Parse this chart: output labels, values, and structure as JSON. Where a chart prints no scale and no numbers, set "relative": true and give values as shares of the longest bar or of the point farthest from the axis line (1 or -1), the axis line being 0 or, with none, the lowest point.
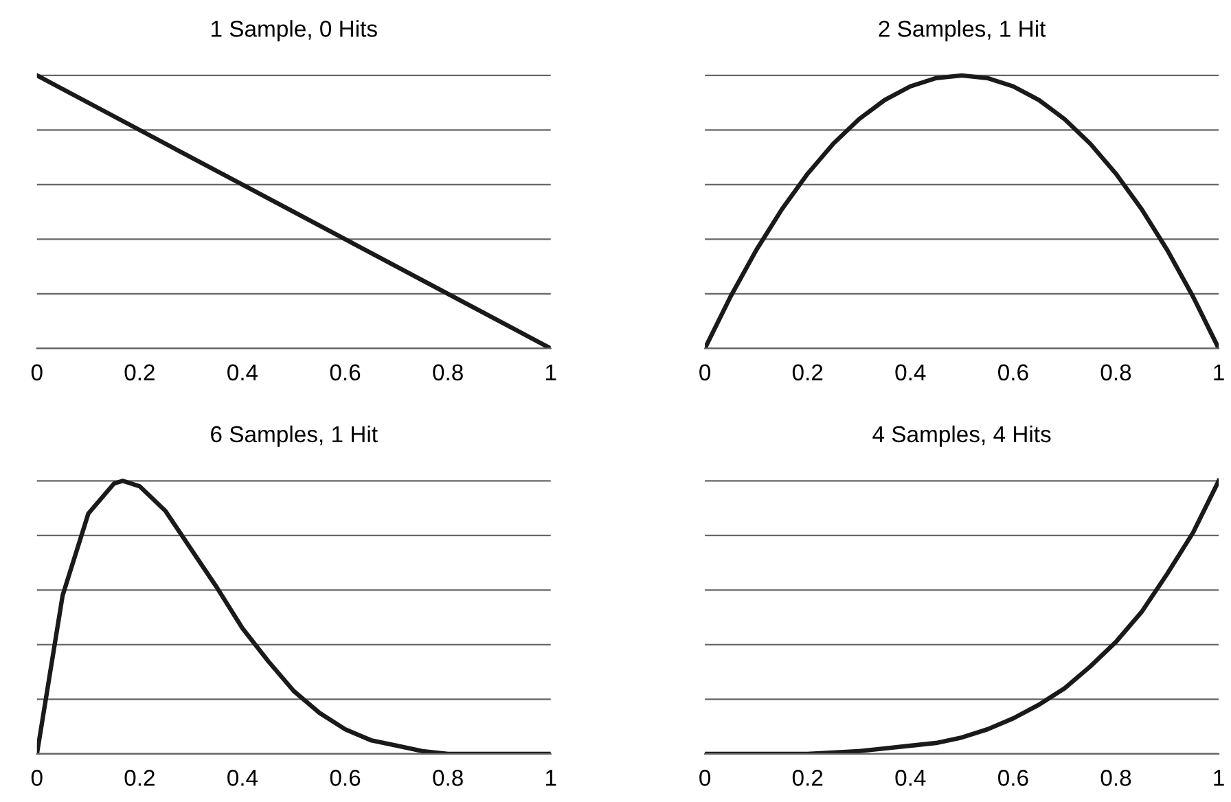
{
  "chart_data": [
    {
      "type": "line",
      "title": "1 Sample, 0 Hits",
      "relative": true,
      "grid": "y",
      "tick_labels": "x",
      "xlim": [
        0,
        1
      ],
      "xticks": [
        0,
        0.2,
        0.4,
        0.6,
        0.8,
        1
      ],
      "series": [
        {
          "color": "#1a1a1a",
          "x": [
            0,
            0.25,
            0.5,
            0.75,
            1
          ],
          "values": [
            1,
            0.75,
            0.5,
            0.25,
            0
          ]
        }
      ]
    },
    {
      "type": "line",
      "title": "2 Samples, 1 Hit",
      "relative": true,
      "grid": "y",
      "tick_labels": "x",
      "xlim": [
        0,
        1
      ],
      "xticks": [
        0,
        0.2,
        0.4,
        0.6,
        0.8,
        1
      ],
      "series": [
        {
          "color": "#1a1a1a",
          "x": [
            0,
            0.05,
            0.1,
            0.15,
            0.2,
            0.25,
            0.3,
            0.35,
            0.4,
            0.45,
            0.5,
            0.55,
            0.6,
            0.65,
            0.7,
            0.75,
            0.8,
            0.85,
            0.9,
            0.95,
            1
          ],
          "values": [
            0,
            0.19,
            0.36,
            0.51,
            0.64,
            0.75,
            0.84,
            0.91,
            0.96,
            0.99,
            1,
            0.99,
            0.96,
            0.91,
            0.84,
            0.75,
            0.64,
            0.51,
            0.36,
            0.19,
            0
          ]
        }
      ]
    },
    {
      "type": "line",
      "title": "6 Samples, 1 Hit",
      "relative": true,
      "grid": "y",
      "tick_labels": "x",
      "xlim": [
        0,
        1
      ],
      "xticks": [
        0,
        0.2,
        0.4,
        0.6,
        0.8,
        1
      ],
      "series": [
        {
          "color": "#1a1a1a",
          "x": [
            0,
            0.05,
            0.1,
            0.15,
            0.167,
            0.2,
            0.25,
            0.3,
            0.35,
            0.4,
            0.45,
            0.5,
            0.55,
            0.6,
            0.65,
            0.7,
            0.75,
            0.8,
            0.85,
            0.9,
            1
          ],
          "values": [
            0,
            0.58,
            0.88,
            0.99,
            1,
            0.98,
            0.89,
            0.75,
            0.61,
            0.46,
            0.34,
            0.23,
            0.15,
            0.09,
            0.05,
            0.03,
            0.01,
            0,
            0,
            0,
            0
          ]
        }
      ]
    },
    {
      "type": "line",
      "title": "4 Samples, 4 Hits",
      "relative": true,
      "grid": "y",
      "tick_labels": "x",
      "xlim": [
        0,
        1
      ],
      "xticks": [
        0,
        0.2,
        0.4,
        0.6,
        0.8,
        1
      ],
      "series": [
        {
          "color": "#1a1a1a",
          "x": [
            0,
            0.2,
            0.3,
            0.4,
            0.45,
            0.5,
            0.55,
            0.6,
            0.65,
            0.7,
            0.75,
            0.8,
            0.85,
            0.9,
            0.95,
            1
          ],
          "values": [
            0,
            0,
            0.01,
            0.03,
            0.04,
            0.06,
            0.09,
            0.13,
            0.18,
            0.24,
            0.32,
            0.41,
            0.52,
            0.66,
            0.81,
            1
          ]
        }
      ]
    }
  ]
}
